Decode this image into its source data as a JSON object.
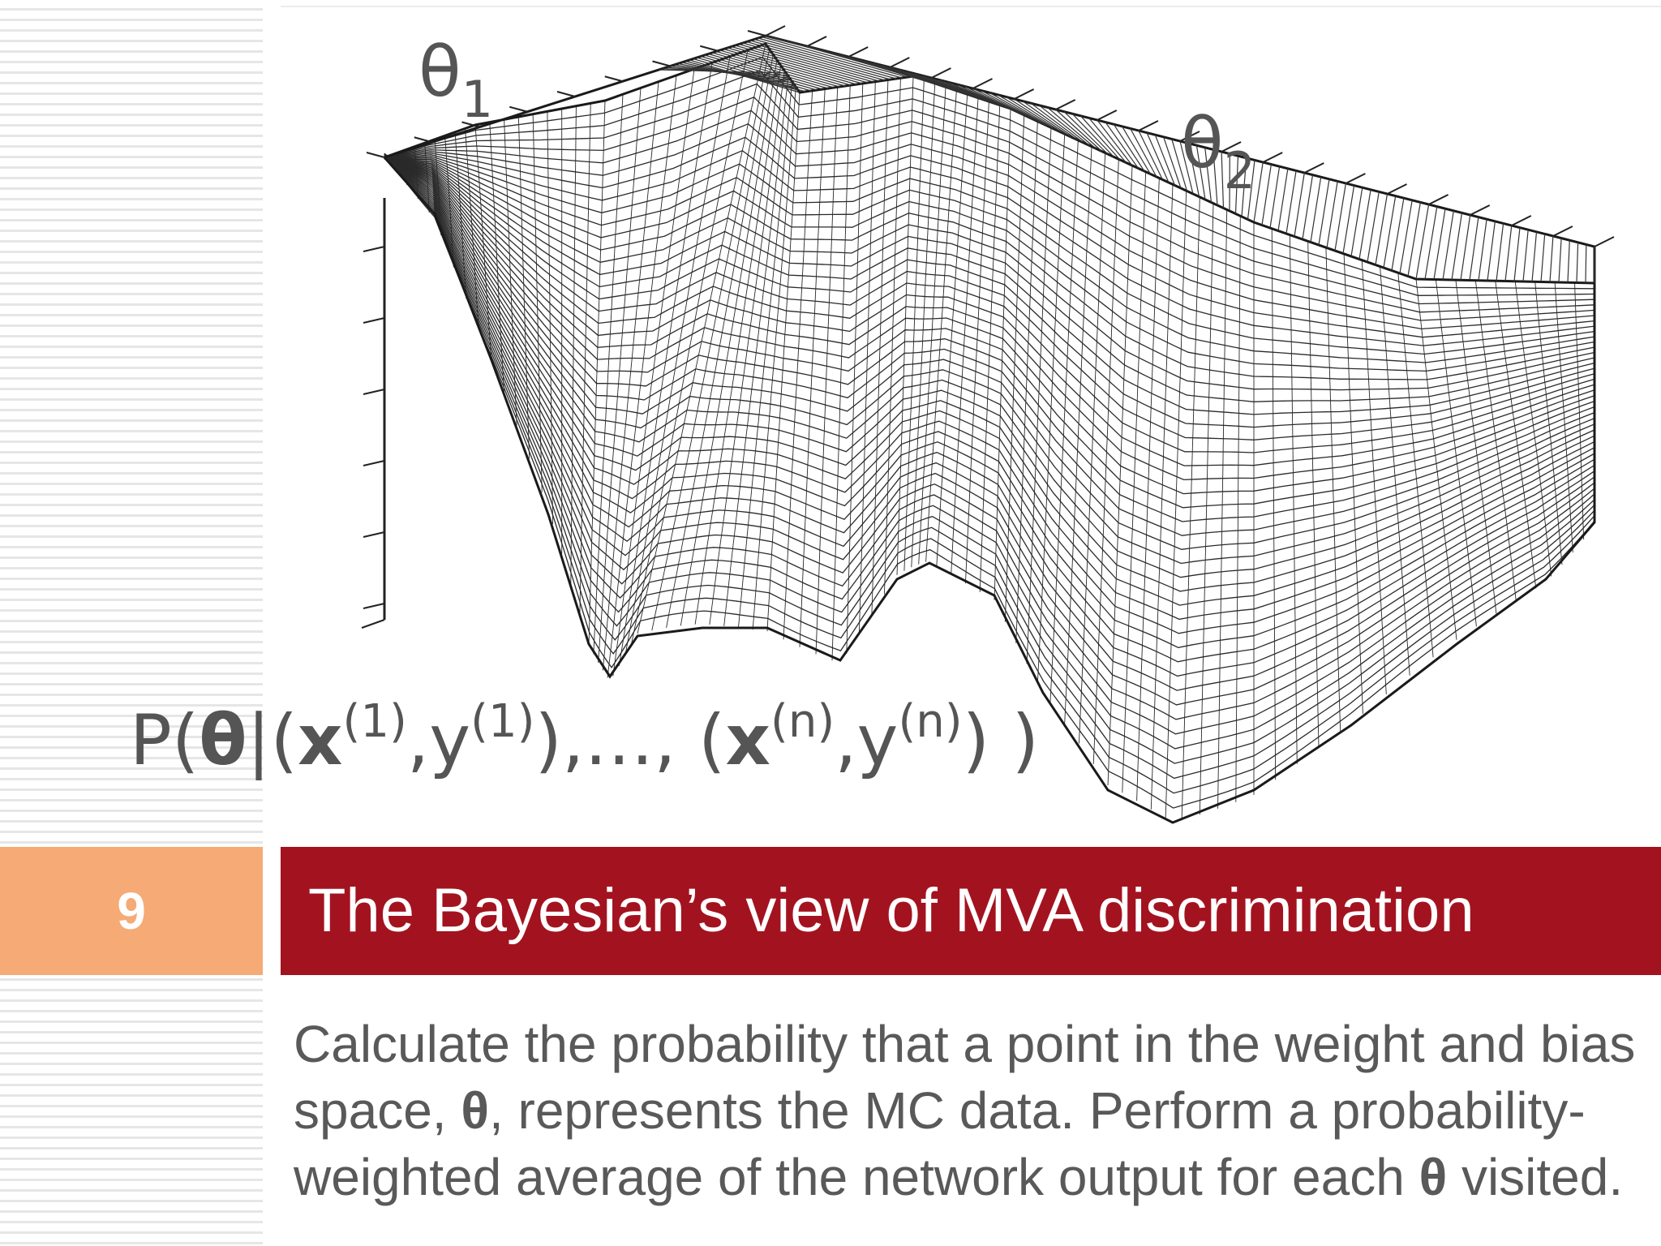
{
  "slide": {
    "number": "9",
    "title": "The Bayesian’s view of MVA discrimination"
  },
  "plot": {
    "theta1_symbol": "θ",
    "theta1_sub": "1",
    "theta2_symbol": "θ",
    "theta2_sub": "2"
  },
  "formula": {
    "prefix": "P(",
    "theta": "θ",
    "bar_open": "|(",
    "x": "x",
    "sup_1": "(1)",
    "comma_y": ",y",
    "sup_1b": "(1)",
    "middle": "),…, (",
    "x2": "x",
    "sup_n": "(n)",
    "comma_y2": ",y",
    "sup_n2": "(n)",
    "suffix": ") )"
  },
  "body": {
    "part1": "Calculate the probability that a point in the weight and bias space, ",
    "theta": "θ",
    "part2": ", represents the MC data.  Perform a probability-weighted average of the network output for each ",
    "theta2": "θ",
    "part3": " visited."
  },
  "colors": {
    "title_bar": "#a3131f",
    "number_block": "#f6aa75",
    "body_text": "#595959"
  }
}
